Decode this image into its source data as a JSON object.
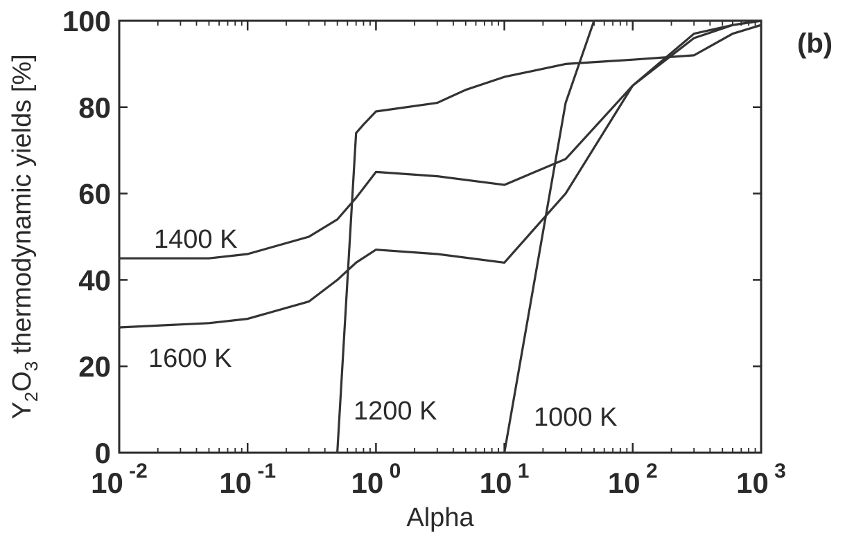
{
  "panel_label": "(b)",
  "chart_data": {
    "type": "line",
    "title": "",
    "xlabel": "Alpha",
    "ylabel": "Y2O3 thermodynamic yields [%]",
    "xscale": "log",
    "xlim": [
      0.01,
      1000
    ],
    "ylim": [
      0,
      100
    ],
    "xticks": [
      {
        "base": "10",
        "exp": "-2",
        "value": 0.01
      },
      {
        "base": "10",
        "exp": "-1",
        "value": 0.1
      },
      {
        "base": "10",
        "exp": "0",
        "value": 1
      },
      {
        "base": "10",
        "exp": "1",
        "value": 10
      },
      {
        "base": "10",
        "exp": "2",
        "value": 100
      },
      {
        "base": "10",
        "exp": "3",
        "value": 1000
      }
    ],
    "yticks": [
      "0",
      "20",
      "40",
      "60",
      "80",
      "100"
    ],
    "grid": false,
    "legend": "none",
    "series": [
      {
        "name": "1400 K",
        "x": [
          0.01,
          0.05,
          0.1,
          0.3,
          0.5,
          0.7,
          1,
          3,
          10,
          30,
          100,
          300,
          600,
          1000
        ],
        "y": [
          45,
          45,
          46,
          50,
          54,
          59,
          65,
          64,
          62,
          68,
          85,
          97,
          99,
          100
        ]
      },
      {
        "name": "1600 K",
        "x": [
          0.01,
          0.05,
          0.1,
          0.3,
          0.5,
          0.7,
          1,
          3,
          10,
          30,
          100,
          300,
          600,
          1000
        ],
        "y": [
          29,
          30,
          31,
          35,
          40,
          44,
          47,
          46,
          44,
          60,
          85,
          96,
          99,
          100
        ]
      },
      {
        "name": "1200 K",
        "x": [
          0.5,
          0.7,
          0.8,
          1,
          3,
          5,
          10,
          30,
          100,
          300,
          600,
          1000
        ],
        "y": [
          0,
          74,
          76,
          79,
          81,
          84,
          87,
          90,
          91,
          92,
          97,
          99
        ]
      },
      {
        "name": "1000 K",
        "x": [
          10,
          30,
          50,
          1000
        ],
        "y": [
          0,
          81,
          100,
          100
        ]
      }
    ]
  }
}
